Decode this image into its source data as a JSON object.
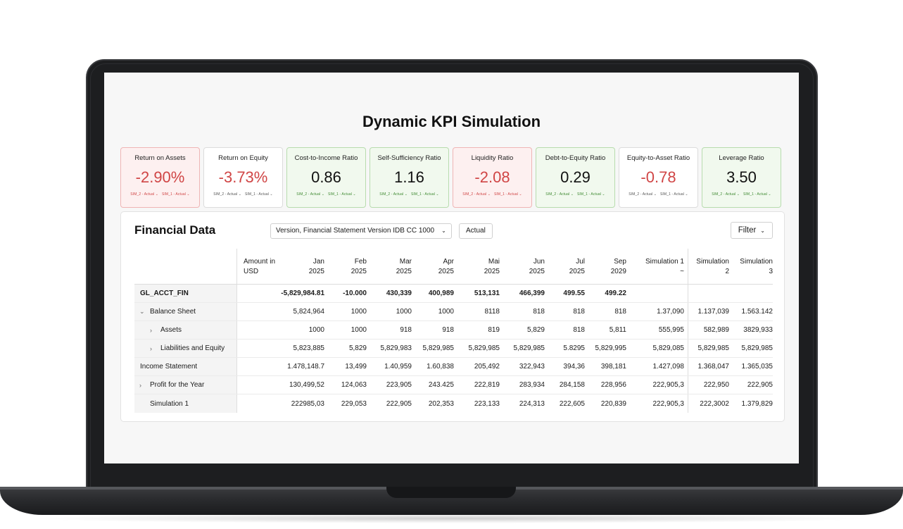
{
  "title": "Dynamic KPI Simulation",
  "kpis": [
    {
      "title": "Return on Assets",
      "value": "-2.90%",
      "sub1": "SIM_2 - Actual ⌄",
      "sub2": "SIM_1 - Actual ⌄",
      "status": "negative"
    },
    {
      "title": "Return on Equity",
      "value": "-3.73%",
      "sub1": "SIM_2 - Actual ⌄",
      "sub2": "SIM_1 - Actual ⌄",
      "status": "neutral"
    },
    {
      "title": "Cost-to-Income Ratio",
      "value": "0.86",
      "sub1": "SIM_2 - Actual ⌄",
      "sub2": "SIM_1 - Actual ⌄",
      "status": "positive"
    },
    {
      "title": "Self-Sufficiency Ratio",
      "value": "1.16",
      "sub1": "SIM_2 - Actual ⌄",
      "sub2": "SIM_1 - Actual ⌄",
      "status": "positive"
    },
    {
      "title": "Liquidity Ratio",
      "value": "-2.08",
      "sub1": "SIM_2 - Actual ⌄",
      "sub2": "SIM_1 - Actual ⌄",
      "status": "negative"
    },
    {
      "title": "Debt-to-Equity Ratio",
      "value": "0.29",
      "sub1": "SIM_2 - Actual ⌄",
      "sub2": "SIM_1 - Actual ⌄",
      "status": "positive"
    },
    {
      "title": "Equity-to-Asset Ratio",
      "value": "-0.78",
      "sub1": "SIM_2 - Actual ⌄",
      "sub2": "SIM_1 - Actual ⌄",
      "status": "neutral"
    },
    {
      "title": "Leverage Ratio",
      "value": "3.50",
      "sub1": "SIM_2 - Actual ⌄",
      "sub2": "SIM_1 - Actual ⌄",
      "status": "positive"
    }
  ],
  "panel": {
    "title": "Financial Data",
    "version_select": "Version, Financial Statement Version IDB CC 1000",
    "actual_label": "Actual",
    "filter_label": "Filter",
    "chevron": "⌄"
  },
  "table": {
    "headers": {
      "amt_1": "Amount in",
      "amt_2": "USD",
      "jan_1": "Jan",
      "jan_2": "2025",
      "feb_1": "Feb",
      "feb_2": "2025",
      "mar_1": "Mar",
      "mar_2": "2025",
      "apr_1": "Apr",
      "apr_2": "2025",
      "mai_1": "Mai",
      "mai_2": "2025",
      "jun_1": "Jun",
      "jun_2": "2025",
      "jul_1": "Jul",
      "jul_2": "2025",
      "sep_1": "Sep",
      "sep_2": "2029",
      "sim1_1": "Simulation 1",
      "sim1_2": "~",
      "sim2_1": "Simulation",
      "sim2_2": "2",
      "sim3_1": "Simulation",
      "sim3_2": "3"
    },
    "rows": [
      {
        "label": "GL_ACCT_FIN",
        "twisty": "",
        "amt": "-5,829,984.81",
        "jan": "-10.000",
        "feb": "430,339",
        "mar": "400,989",
        "apr": "513,131",
        "mai": "466,399",
        "jun": "499.55",
        "jul": "499.22",
        "sep": "",
        "sim1": "",
        "sim2": ""
      },
      {
        "label": "Balance Sheet",
        "twisty": "⌄",
        "amt": "5,824,964",
        "jan": "1000",
        "feb": "1000",
        "mar": "1000",
        "apr": "8118",
        "mai": "818",
        "jun": "818",
        "jul": "818",
        "sep": "1.37,090",
        "sim1": "1.137,039",
        "sim2": "1.563.142"
      },
      {
        "label": "Assets",
        "twisty": "›",
        "amt": "1000",
        "jan": "1000",
        "feb": "918",
        "mar": "918",
        "apr": "819",
        "mai": "5,829",
        "jun": "818",
        "jul": "5,811",
        "sep": "555,995",
        "sim1": "582,989",
        "sim2": "3829,933"
      },
      {
        "label": "Liabilities and Equity",
        "twisty": "›",
        "amt": "5,823,885",
        "jan": "5,829",
        "feb": "5,829,983",
        "mar": "5,829,985",
        "apr": "5,829,985",
        "mai": "5,829,985",
        "jun": "5.8295",
        "jul": "5,829,995",
        "sep": "5,829,085",
        "sim1": "5,829,985",
        "sim2": "5,829,985"
      },
      {
        "label": "Income Statement",
        "twisty": "",
        "amt": "1.478,148.7",
        "jan": "13,499",
        "feb": "1.40,959",
        "mar": "1.60,838",
        "apr": "205,492",
        "mai": "322,943",
        "jun": "394,36",
        "jul": "398,181",
        "sep": "1.427,098",
        "sim1": "1.368,047",
        "sim2": "1.365,035"
      },
      {
        "label": "Profit for the Year",
        "twisty": "›",
        "amt": "130,499,52",
        "jan": "124,063",
        "feb": "223,905",
        "mar": "243.425",
        "apr": "222,819",
        "mai": "283,934",
        "jun": "284,158",
        "jul": "228,956",
        "sep": "222,905,3",
        "sim1": "222,950",
        "sim2": "222,905"
      },
      {
        "label": "Simulation 1",
        "twisty": "",
        "amt": "222985,03",
        "jan": "229,053",
        "feb": "222,905",
        "mar": "202,353",
        "apr": "223,133",
        "mai": "224,313",
        "jun": "222,605",
        "jul": "220,839",
        "sep": "222,905,3",
        "sim1": "222,3002",
        "sim2": "1.379,829"
      }
    ]
  },
  "colors": {
    "negative_bg": "#fdf0f0",
    "negative_text": "#d04545",
    "positive_bg": "#f1f9ee",
    "positive_text": "#3f8a32"
  }
}
